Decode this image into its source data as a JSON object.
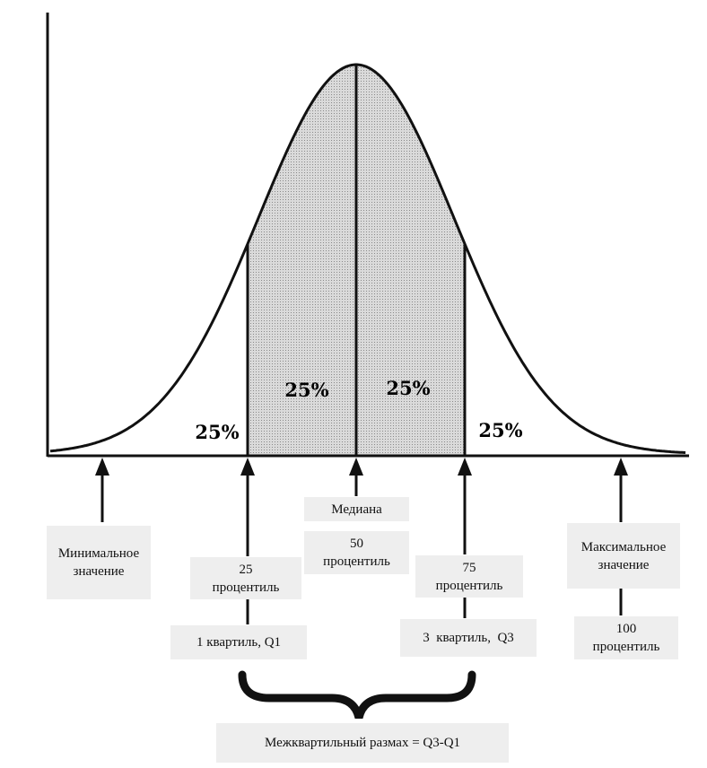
{
  "percent_labels": {
    "left_tail": "25%",
    "q1_median": "25%",
    "median_q3": "25%",
    "right_tail": "25%"
  },
  "labels": {
    "min": [
      "Минимальное",
      "значение"
    ],
    "median": "Медиана",
    "p50": [
      "50",
      "процентиль"
    ],
    "p25": [
      "25",
      "процентиль"
    ],
    "p75": [
      "75",
      "процентиль"
    ],
    "q1": "1 квартиль, Q1",
    "q3": "3  квартиль,  Q3",
    "max": [
      "Максимальное",
      "значение"
    ],
    "p100": [
      "100",
      "процентиль"
    ],
    "iqr": "Межквартильный размах = Q3-Q1"
  },
  "colors": {
    "fill": "#d6d6d6",
    "box": "#eeeeee",
    "ink": "#111111"
  }
}
